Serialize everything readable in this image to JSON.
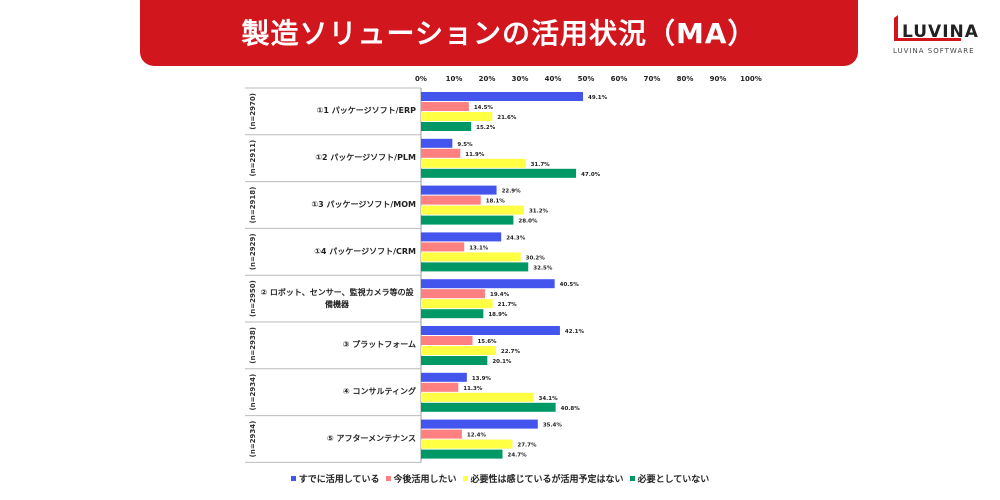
{
  "header": {
    "title": "製造ソリューションの活用状況（MA）"
  },
  "logo": {
    "name": "LUVINA",
    "subtitle": "LUVINA SOFTWARE"
  },
  "chart_data": {
    "type": "bar",
    "orientation": "horizontal",
    "xlim": [
      0,
      100
    ],
    "ticks": [
      "0%",
      "10%",
      "20%",
      "30%",
      "40%",
      "50%",
      "60%",
      "70%",
      "80%",
      "90%",
      "100%"
    ],
    "grid": false,
    "legend_position": "bottom",
    "categories": [
      {
        "label": "①1 パッケージソフト/ERP",
        "n": "(n=2970)"
      },
      {
        "label": "①2 パッケージソフト/PLM",
        "n": "(n=2911)"
      },
      {
        "label": "①3 パッケージソフト/MOM",
        "n": "(n=2918)"
      },
      {
        "label": "①4 パッケージソフト/CRM",
        "n": "(n=2929)"
      },
      {
        "label": "② ロボット、センサー、監視カメラ等の設備機器",
        "n": "(n=2950)"
      },
      {
        "label": "③ プラットフォーム",
        "n": "(n=2938)"
      },
      {
        "label": "④ コンサルティング",
        "n": "(n=2934)"
      },
      {
        "label": "⑤ アフターメンテナンス",
        "n": "(n=2934)"
      }
    ],
    "series": [
      {
        "name": "すでに活用している",
        "color": "#4455ee",
        "values": [
          49.1,
          9.5,
          22.9,
          24.3,
          40.5,
          42.1,
          13.9,
          35.4
        ]
      },
      {
        "name": "今後活用したい",
        "color": "#ff8080",
        "values": [
          14.5,
          11.9,
          18.1,
          13.1,
          19.4,
          15.6,
          11.3,
          12.4
        ]
      },
      {
        "name": "必要性は感じているが活用予定はない",
        "color": "#ffff44",
        "values": [
          21.6,
          31.7,
          31.2,
          30.2,
          21.7,
          22.7,
          34.1,
          27.7
        ]
      },
      {
        "name": "必要としていない",
        "color": "#009966",
        "values": [
          15.2,
          47.0,
          28.0,
          32.5,
          18.9,
          20.1,
          40.8,
          24.7
        ]
      }
    ]
  }
}
